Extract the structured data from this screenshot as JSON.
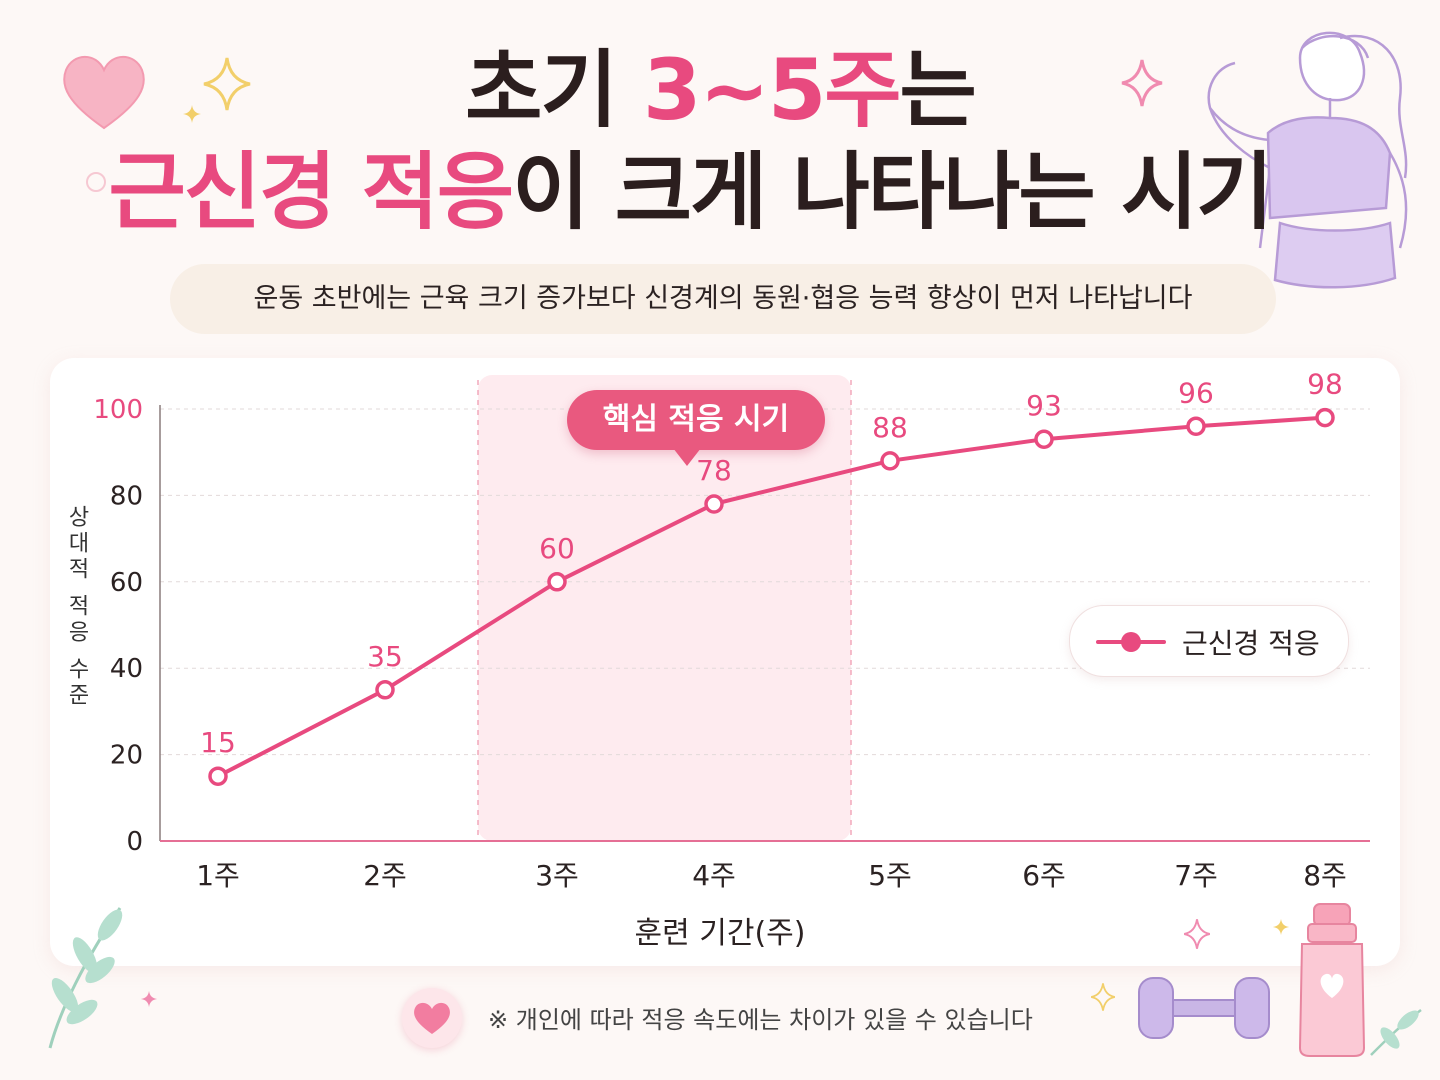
{
  "title": {
    "line1_prefix": "초기 ",
    "line1_highlight": "3~5주",
    "line1_suffix": "는",
    "line2_highlight": "근신경 적응",
    "line2_suffix": "이 크게 나타나는 시기"
  },
  "subtitle": "운동 초반에는 근육 크기 증가보다 신경계의 동원·협응 능력 향상이 먼저 나타납니다",
  "callout": "핵심 적응 시기",
  "legend": {
    "label": "근신경 적응"
  },
  "footnote": "※ 개인에 따라 적응 속도에는 차이가 있을 수 있습니다",
  "icons": [
    "heart-icon",
    "sparkle-icon",
    "woman-flexing-illustration",
    "leaf-icon",
    "dumbbell-icon",
    "water-bottle-icon"
  ],
  "colors": {
    "accent": "#e84a7f",
    "highlight_band": "#fde4ea",
    "line": "#e84a7f"
  },
  "chart_data": {
    "type": "line",
    "categories": [
      "1주",
      "2주",
      "3주",
      "4주",
      "5주",
      "6주",
      "7주",
      "8주"
    ],
    "series": [
      {
        "name": "근신경 적응",
        "values": [
          15,
          35,
          60,
          78,
          88,
          93,
          96,
          98
        ]
      }
    ],
    "xlabel": "훈련 기간(주)",
    "ylabel": "상대적 적응 수준",
    "ylim": [
      0,
      100
    ],
    "yticks": [
      0,
      20,
      40,
      60,
      80,
      100
    ],
    "highlight_range": [
      "3주",
      "5주"
    ],
    "grid": true,
    "legend_position": "right"
  }
}
